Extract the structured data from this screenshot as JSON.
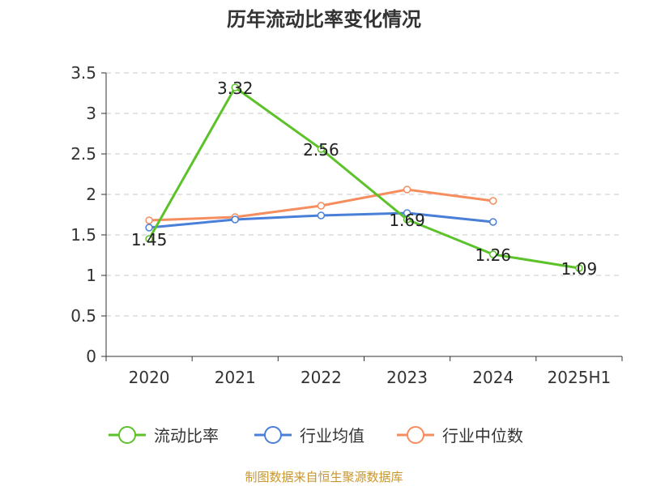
{
  "chart_data": {
    "type": "line",
    "title": "历年流动比率变化情况",
    "xlabel": "",
    "ylabel": "",
    "categories": [
      "2020",
      "2021",
      "2022",
      "2023",
      "2024",
      "2025H1"
    ],
    "yticks": [
      "0",
      "0.5",
      "1",
      "1.5",
      "2",
      "2.5",
      "3",
      "3.5"
    ],
    "ylim": [
      0,
      3.5
    ],
    "grid": "horizontal-dashed",
    "legend_position": "bottom",
    "series": [
      {
        "name": "流动比率",
        "color": "#5cc22a",
        "values": [
          1.45,
          3.32,
          2.56,
          1.69,
          1.26,
          1.09
        ],
        "labels": [
          "1.45",
          "3.32",
          "2.56",
          "1.69",
          "1.26",
          "1.09"
        ]
      },
      {
        "name": "行业均值",
        "color": "#4a7fd8",
        "values": [
          1.59,
          1.69,
          1.74,
          1.77,
          1.66,
          null
        ]
      },
      {
        "name": "行业中位数",
        "color": "#f58d5e",
        "values": [
          1.68,
          1.72,
          1.86,
          2.06,
          1.92,
          null
        ]
      }
    ]
  },
  "source": "制图数据来自恒生聚源数据库"
}
